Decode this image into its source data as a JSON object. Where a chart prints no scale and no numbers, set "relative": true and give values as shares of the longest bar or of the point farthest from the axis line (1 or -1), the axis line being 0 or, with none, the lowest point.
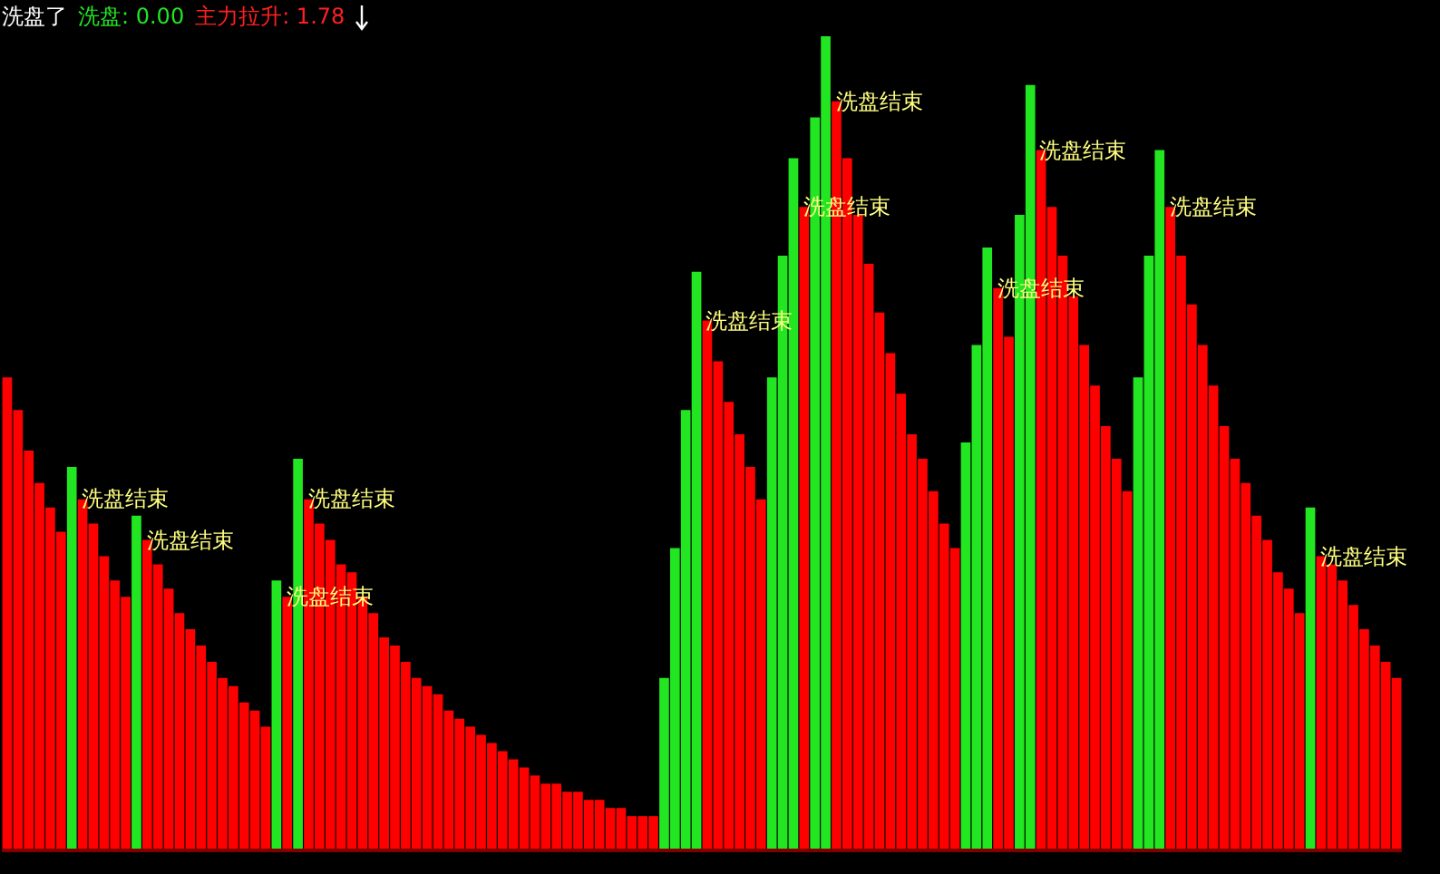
{
  "chart_data": {
    "type": "bar",
    "relative": true,
    "title": "洗盘了",
    "tick_labels": false,
    "grid": false,
    "annotations": [
      "洗盘: 0.00",
      "主力拉升: 1.78",
      "洗盘结束",
      "洗盘结束",
      "洗盘结束",
      "洗盘结束",
      "洗盘结束",
      "洗盘结束",
      "洗盘结束",
      "洗盘结束",
      "洗盘结束",
      "洗盘结束",
      "洗盘结束"
    ],
    "categories": [
      null,
      null,
      null,
      null,
      null,
      null,
      null,
      null,
      null,
      null,
      null,
      null,
      null,
      null,
      null,
      null,
      null,
      null,
      null,
      null,
      null,
      null,
      null,
      null,
      null,
      null,
      null,
      null,
      null,
      null,
      null,
      null,
      null,
      null,
      null,
      null,
      null,
      null,
      null,
      null,
      null,
      null,
      null,
      null,
      null,
      null,
      null,
      null,
      null,
      null,
      null,
      null,
      null,
      null,
      null,
      null,
      null,
      null,
      null,
      null,
      null,
      null,
      null,
      null,
      null,
      null,
      null,
      null,
      null,
      null,
      null,
      null,
      null,
      null,
      null,
      null,
      null,
      null,
      null,
      null,
      null,
      null,
      null,
      null,
      null,
      null,
      null,
      null,
      null,
      null,
      null,
      null,
      null,
      null,
      null,
      null,
      null,
      null,
      null,
      null,
      null,
      null,
      null,
      null,
      null,
      null,
      null,
      null,
      null,
      null,
      null,
      null,
      null,
      null,
      null,
      null,
      null,
      null,
      null,
      null,
      null,
      null,
      null,
      null,
      null,
      null,
      null,
      null,
      null,
      null
    ],
    "values": [
      0.58,
      0.54,
      0.49,
      0.45,
      0.42,
      0.39,
      0.47,
      0.43,
      0.4,
      0.36,
      0.33,
      0.31,
      0.41,
      0.38,
      0.35,
      0.32,
      0.29,
      0.27,
      0.25,
      0.23,
      0.21,
      0.2,
      0.18,
      0.17,
      0.15,
      0.33,
      0.31,
      0.48,
      0.43,
      0.4,
      0.38,
      0.35,
      0.34,
      0.31,
      0.29,
      0.26,
      0.25,
      0.23,
      0.21,
      0.2,
      0.19,
      0.17,
      0.16,
      0.15,
      0.14,
      0.13,
      0.12,
      0.11,
      0.1,
      0.09,
      0.08,
      0.08,
      0.07,
      0.07,
      0.06,
      0.06,
      0.05,
      0.05,
      0.04,
      0.04,
      0.04,
      0.21,
      0.37,
      0.54,
      0.71,
      0.65,
      0.6,
      0.55,
      0.51,
      0.47,
      0.43,
      0.58,
      0.73,
      0.85,
      0.79,
      0.9,
      1,
      0.92,
      0.85,
      0.78,
      0.72,
      0.66,
      0.61,
      0.56,
      0.51,
      0.48,
      0.44,
      0.4,
      0.37,
      0.5,
      0.62,
      0.74,
      0.69,
      0.63,
      0.78,
      0.94,
      0.86,
      0.79,
      0.73,
      0.68,
      0.62,
      0.57,
      0.52,
      0.48,
      0.44,
      0.58,
      0.73,
      0.86,
      0.79,
      0.73,
      0.67,
      0.62,
      0.57,
      0.52,
      0.48,
      0.45,
      0.41,
      0.38,
      0.34,
      0.32,
      0.29,
      0.42,
      0.36,
      0.35,
      0.33,
      0.3,
      0.27,
      0.25,
      0.23,
      0.21
    ],
    "colors": [
      "#ff0000",
      "#ff0000",
      "#ff0000",
      "#ff0000",
      "#ff0000",
      "#ff0000",
      "#22e622",
      "#ff0000",
      "#ff0000",
      "#ff0000",
      "#ff0000",
      "#ff0000",
      "#22e622",
      "#ff0000",
      "#ff0000",
      "#ff0000",
      "#ff0000",
      "#ff0000",
      "#ff0000",
      "#ff0000",
      "#ff0000",
      "#ff0000",
      "#ff0000",
      "#ff0000",
      "#ff0000",
      "#22e622",
      "#ff0000",
      "#22e622",
      "#ff0000",
      "#ff0000",
      "#ff0000",
      "#ff0000",
      "#ff0000",
      "#ff0000",
      "#ff0000",
      "#ff0000",
      "#ff0000",
      "#ff0000",
      "#ff0000",
      "#ff0000",
      "#ff0000",
      "#ff0000",
      "#ff0000",
      "#ff0000",
      "#ff0000",
      "#ff0000",
      "#ff0000",
      "#ff0000",
      "#ff0000",
      "#ff0000",
      "#ff0000",
      "#ff0000",
      "#ff0000",
      "#ff0000",
      "#ff0000",
      "#ff0000",
      "#ff0000",
      "#ff0000",
      "#ff0000",
      "#ff0000",
      "#ff0000",
      "#22e622",
      "#22e622",
      "#22e622",
      "#22e622",
      "#ff0000",
      "#ff0000",
      "#ff0000",
      "#ff0000",
      "#ff0000",
      "#ff0000",
      "#22e622",
      "#22e622",
      "#22e622",
      "#ff0000",
      "#22e622",
      "#22e622",
      "#ff0000",
      "#ff0000",
      "#ff0000",
      "#ff0000",
      "#ff0000",
      "#ff0000",
      "#ff0000",
      "#ff0000",
      "#ff0000",
      "#ff0000",
      "#ff0000",
      "#ff0000",
      "#22e622",
      "#22e622",
      "#22e622",
      "#ff0000",
      "#ff0000",
      "#22e622",
      "#22e622",
      "#ff0000",
      "#ff0000",
      "#ff0000",
      "#ff0000",
      "#ff0000",
      "#ff0000",
      "#ff0000",
      "#ff0000",
      "#ff0000",
      "#22e622",
      "#22e622",
      "#22e622",
      "#ff0000",
      "#ff0000",
      "#ff0000",
      "#ff0000",
      "#ff0000",
      "#ff0000",
      "#ff0000",
      "#ff0000",
      "#ff0000",
      "#ff0000",
      "#ff0000",
      "#ff0000",
      "#ff0000",
      "#22e622",
      "#ff0000",
      "#ff0000",
      "#ff0000",
      "#ff0000",
      "#ff0000",
      "#ff0000",
      "#ff0000",
      "#ff0000"
    ]
  }
}
